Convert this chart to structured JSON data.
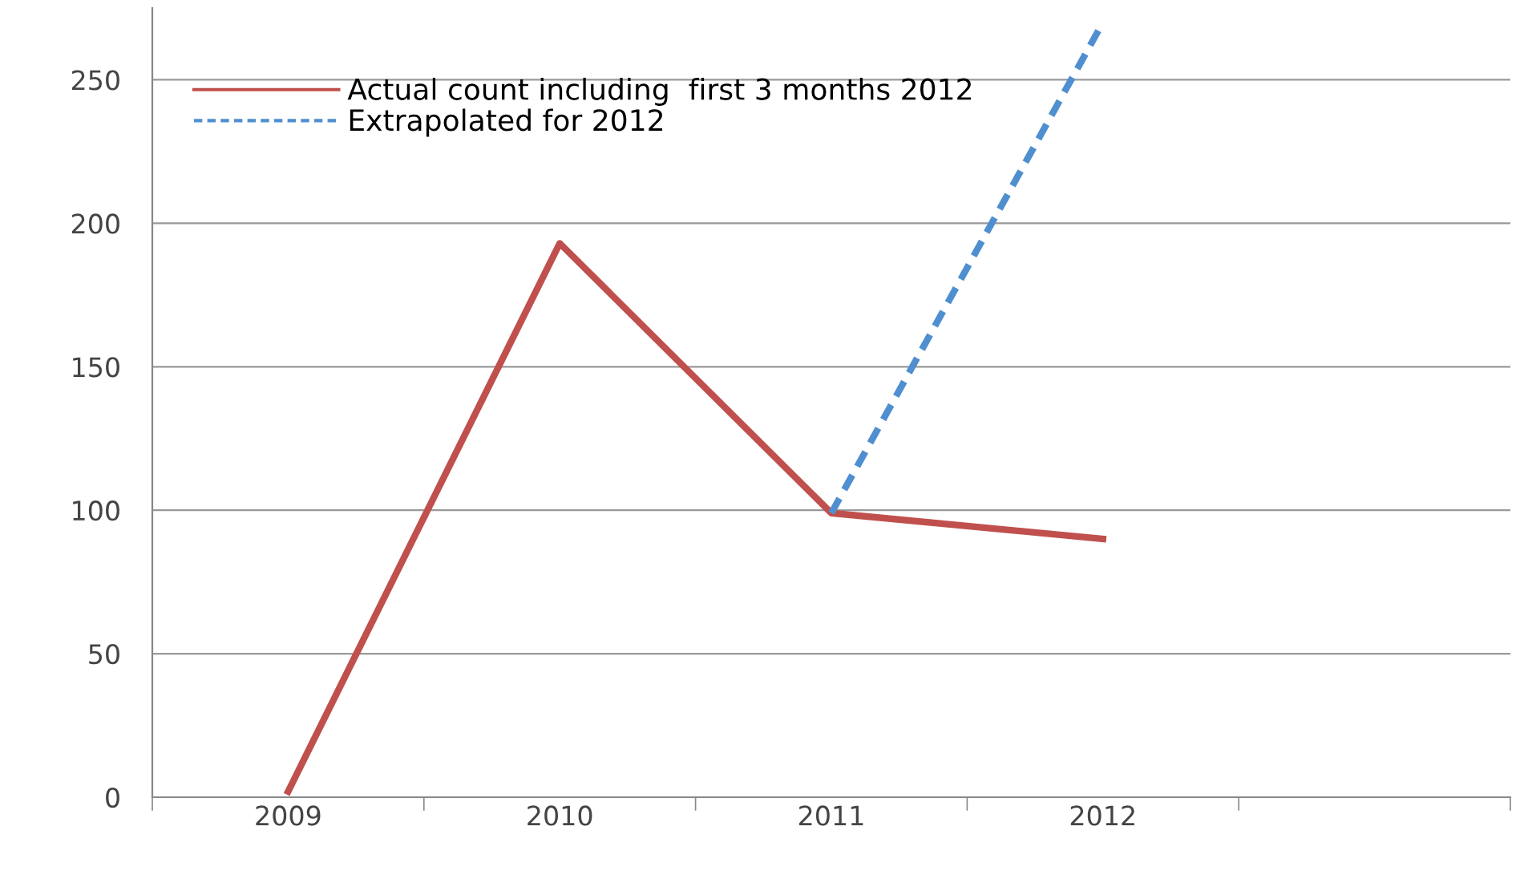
{
  "chart_data": {
    "type": "line",
    "categories": [
      "2009",
      "2010",
      "2011",
      "2012",
      null
    ],
    "series": [
      {
        "name": "Actual count including  first 3 months 2012",
        "color": "#c0504d",
        "values": [
          2,
          193,
          99,
          90,
          null
        ],
        "line_style": "solid"
      },
      {
        "name": "Extrapolated for 2012",
        "color": "#4f8fd0",
        "values": [
          null,
          null,
          99,
          270,
          null
        ],
        "line_style": "dashed"
      }
    ],
    "ylim": [
      0,
      275
    ],
    "yticks": [
      0,
      50,
      100,
      150,
      200,
      250
    ],
    "grid": "y",
    "legend": "top left",
    "marker": "none"
  }
}
